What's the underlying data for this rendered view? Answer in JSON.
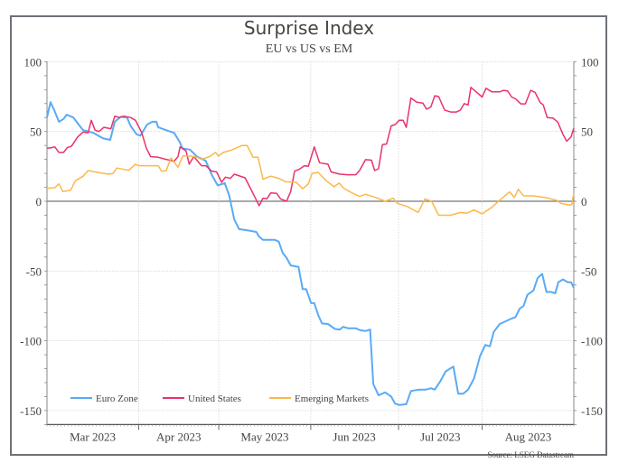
{
  "chart_data": {
    "type": "line",
    "title": "Surprise Index",
    "subtitle": "EU vs US vs EM",
    "xlabel": "",
    "ylabel": "",
    "ylim": [
      -160,
      100
    ],
    "y_ticks": [
      100,
      50,
      0,
      -50,
      -100,
      -150
    ],
    "xlim": [
      0,
      150
    ],
    "x_unit": "trading-day index",
    "x_ticks": [
      {
        "label": "Mar 2023",
        "at": 13
      },
      {
        "label": "Apr 2023",
        "at": 37.5
      },
      {
        "label": "May 2023",
        "at": 62
      },
      {
        "label": "Jun 2023",
        "at": 87.5
      },
      {
        "label": "Jul 2023",
        "at": 112
      },
      {
        "label": "Aug 2023",
        "at": 137
      }
    ],
    "month_boundaries": [
      26.1,
      48.9,
      75.1,
      100.1,
      123.9
    ],
    "grid": true,
    "legend_position": "bottom-left",
    "source": "Source: LSEG Datastream",
    "series": [
      {
        "name": "Euro Zone",
        "color": "#5aaaf5",
        "x": [
          0,
          1,
          2.1,
          3.4,
          4.7,
          5.6,
          7.5,
          8.7,
          10.3,
          13.2,
          16,
          18,
          19.3,
          21,
          22.8,
          23.8,
          25.5,
          26.6,
          28.5,
          30,
          31.1,
          31.7,
          33.9,
          36.2,
          37.9,
          38.5,
          40.7,
          42.7,
          45.2,
          46.9,
          48.6,
          50.6,
          51.9,
          53.3,
          54.7,
          57.5,
          59.6,
          60.4,
          61.5,
          64.9,
          66,
          67.1,
          68.2,
          69.4,
          71.6,
          72.8,
          73.8,
          75.2,
          76.1,
          77.2,
          78.3,
          80,
          82,
          83.4,
          84.3,
          85.7,
          87.9,
          89.2,
          90.7,
          92,
          92.9,
          94.4,
          96.3,
          98,
          99.1,
          100.3,
          102.3,
          103.6,
          105.9,
          107.9,
          109.3,
          110.4,
          112,
          113.5,
          115.7,
          117.1,
          118.5,
          119.9,
          121.6,
          123.3,
          124.8,
          126.1,
          127.2,
          128.9,
          130.6,
          132.3,
          133.4,
          134.6,
          135.7,
          136.8,
          138.5,
          139.7,
          141,
          142.2,
          143.5,
          144.7,
          145.6,
          146.9,
          148.3,
          149.2,
          150
        ],
        "y": [
          60,
          71,
          65,
          57,
          59,
          62,
          60,
          56,
          51,
          49,
          45,
          44,
          57,
          60.5,
          60,
          54,
          48,
          47,
          55,
          57,
          57,
          53,
          51,
          49,
          42,
          38,
          37,
          32,
          29,
          19,
          11.4,
          13,
          4,
          -13,
          -20,
          -21,
          -22,
          -25.5,
          -27.7,
          -27.7,
          -29,
          -37,
          -40.5,
          -46,
          -47,
          -63,
          -63,
          -73,
          -73,
          -81.5,
          -87.6,
          -88,
          -91.5,
          -92,
          -90,
          -91,
          -91,
          -92.5,
          -93,
          -92,
          -131,
          -139,
          -137,
          -140,
          -145,
          -146,
          -145.5,
          -136,
          -135,
          -135,
          -134,
          -135,
          -129,
          -122,
          -118.5,
          -138,
          -138,
          -135,
          -127,
          -111,
          -103,
          -104,
          -93.6,
          -88,
          -86,
          -84,
          -83,
          -77,
          -75,
          -67,
          -64,
          -55,
          -52,
          -65,
          -65,
          -66,
          -58,
          -56,
          -58,
          -58,
          -62
        ]
      },
      {
        "name": "United States",
        "color": "#e8336b",
        "x": [
          0,
          1.3,
          2.2,
          3.4,
          4.7,
          5.8,
          7,
          8.7,
          10.3,
          11.7,
          12.6,
          13.7,
          14.8,
          16.2,
          18.2,
          19.3,
          20.5,
          21.8,
          23.8,
          25.2,
          27,
          28.3,
          29.5,
          31.7,
          33.9,
          36.2,
          37.3,
          37.9,
          39.6,
          40.5,
          41.8,
          44,
          45.2,
          46.9,
          48.3,
          49.7,
          50.8,
          52.2,
          53.3,
          56.4,
          57.5,
          60.4,
          61.5,
          62.6,
          63.7,
          65.4,
          66.5,
          68.2,
          69.4,
          70.5,
          71.9,
          73.3,
          74.4,
          76.1,
          77.6,
          78.9,
          80,
          80.9,
          83.4,
          85.6,
          87.9,
          89,
          90.7,
          92.4,
          93.3,
          94.4,
          95.5,
          96.7,
          98,
          99.1,
          100.3,
          101.4,
          102.3,
          103.6,
          105.3,
          107,
          108.1,
          109.3,
          110.4,
          111.5,
          113.2,
          114.9,
          116.6,
          117.7,
          118.8,
          119.9,
          120.7,
          122.2,
          123.9,
          125,
          126.7,
          128.9,
          130,
          131.2,
          132.3,
          133.4,
          134.9,
          136.2,
          137.7,
          139,
          140.4,
          141.3,
          142.4,
          144.1,
          145.4,
          146.9,
          148,
          149.2,
          150
        ],
        "y": [
          38,
          38.4,
          39,
          35,
          35,
          38.4,
          39.5,
          46,
          49.7,
          49,
          58,
          51,
          50,
          53,
          52,
          61,
          60,
          61,
          60,
          58,
          49,
          38,
          32,
          31.5,
          30,
          28.7,
          32,
          39,
          36,
          26.6,
          32,
          25.5,
          25.5,
          21.6,
          21,
          13.6,
          17.3,
          16.4,
          19.4,
          16.8,
          11.4,
          -3.2,
          2.2,
          1.7,
          6,
          5.6,
          1.7,
          0,
          7,
          21.6,
          23,
          25.5,
          25,
          39,
          27.6,
          27,
          26.6,
          21,
          19.4,
          19,
          19,
          22,
          29.8,
          29.4,
          22,
          23.3,
          40.6,
          41,
          54,
          55,
          58,
          58,
          53,
          74,
          71,
          70.4,
          66,
          67.6,
          75.6,
          75,
          65.4,
          64,
          64,
          65.4,
          70,
          69,
          81.6,
          78.4,
          74.7,
          81,
          78.4,
          78.4,
          79.5,
          79,
          74.7,
          73.4,
          69.8,
          69.8,
          79.5,
          78,
          70.8,
          69,
          60,
          59.6,
          56.8,
          48,
          43,
          46,
          52.5
        ]
      },
      {
        "name": "Emerging Markets",
        "color": "#fbb84a",
        "x": [
          0,
          2.2,
          3.4,
          4.5,
          6.7,
          8.1,
          10.3,
          11.7,
          13.7,
          16,
          17.7,
          18.8,
          19.9,
          23.3,
          25.2,
          26.1,
          31.7,
          32.6,
          33.9,
          35.3,
          37.3,
          38.7,
          40.7,
          42.7,
          44,
          46.3,
          48,
          48.8,
          50.2,
          52.5,
          53.6,
          55.5,
          57,
          58.7,
          60.1,
          61.5,
          63.7,
          66,
          67.9,
          71,
          72.8,
          74.4,
          75.5,
          77.2,
          79.5,
          81.7,
          83.2,
          84.5,
          86.8,
          89,
          90.7,
          93.5,
          96.3,
          98.6,
          99.7,
          102.5,
          105.7,
          107.6,
          109.5,
          111.5,
          114.9,
          117.7,
          119.4,
          121.6,
          123.9,
          126.7,
          129.3,
          131.7,
          133.1,
          134.2,
          135.7,
          138.5,
          142.4,
          145.2,
          146.3,
          148.5,
          149.4,
          150
        ],
        "y": [
          9.3,
          9.7,
          12.5,
          7,
          7.8,
          14.7,
          18,
          22,
          21,
          20,
          19.4,
          20,
          23.8,
          22.2,
          26.6,
          25.5,
          25.5,
          21.6,
          21.8,
          31,
          24.4,
          32.6,
          32.4,
          31.5,
          30,
          32,
          35,
          32.4,
          35,
          36.7,
          37.8,
          40,
          40,
          31.5,
          31.5,
          15.8,
          18,
          16.4,
          14,
          13.6,
          8.9,
          12.5,
          20,
          20.7,
          14.7,
          10.4,
          13,
          9.3,
          6,
          3.5,
          5,
          2.8,
          0,
          2.2,
          -1.5,
          -3.7,
          -8,
          1.7,
          0,
          -10,
          -10,
          -8,
          -8.6,
          -6.3,
          -9,
          -4.3,
          1.7,
          6.7,
          2.8,
          8.6,
          3.9,
          3.9,
          2.4,
          0.6,
          -1.5,
          -2.6,
          -2.6,
          6
        ]
      }
    ]
  }
}
